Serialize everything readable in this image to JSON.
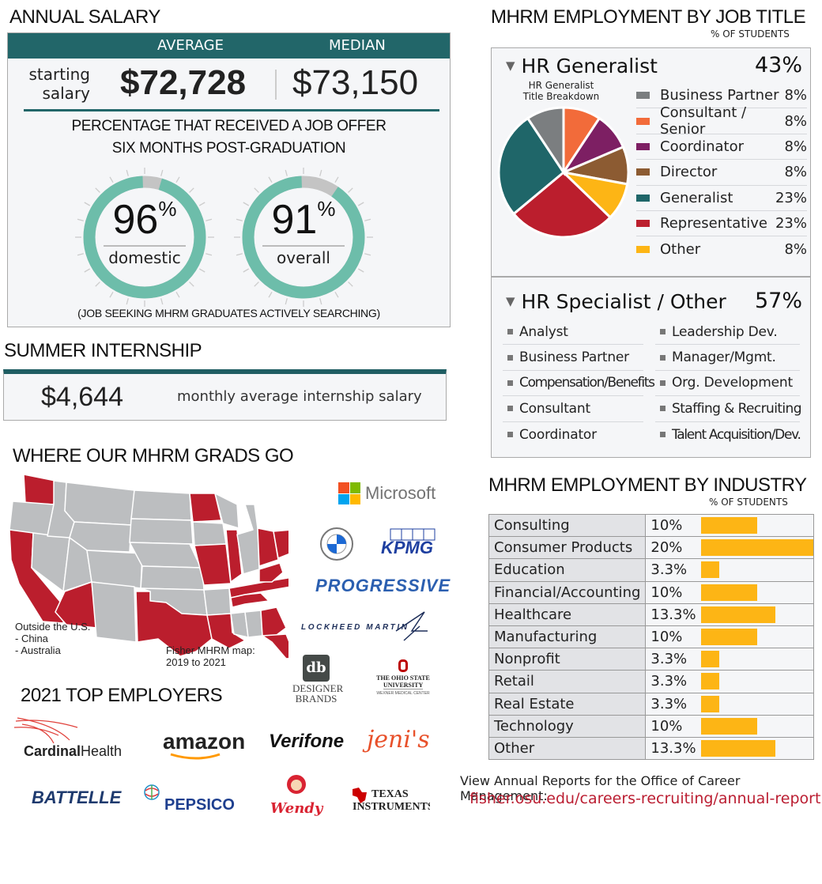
{
  "annual_salary": {
    "title": "ANNUAL SALARY",
    "header_average": "AVERAGE",
    "header_median": "MEDIAN",
    "row_label_line1": "starting",
    "row_label_line2": "salary",
    "average": "$72,728",
    "median": "$73,150",
    "offer_title_line1": "PERCENTAGE THAT RECEIVED A JOB OFFER",
    "offer_title_line2": "SIX MONTHS POST-GRADUATION",
    "gauges": [
      {
        "value": "96",
        "unit": "%",
        "label": "domestic",
        "percent": 96
      },
      {
        "value": "91",
        "unit": "%",
        "label": "overall",
        "percent": 91
      }
    ],
    "note": "(JOB SEEKING MHRM GRADUATES ACTIVELY SEARCHING)",
    "colors": {
      "header": "#226669",
      "gauge_fill": "#6dbdaa",
      "gauge_rest": "#c4c4c4"
    }
  },
  "internship": {
    "title": "SUMMER INTERNSHIP",
    "value": "$4,644",
    "label": "monthly average internship salary"
  },
  "map": {
    "title": "WHERE OUR MHRM GRADS GO",
    "outside_line1": "Outside the U.S.",
    "outside_line2": "- China",
    "outside_line3": "- Australia",
    "caption_line1": "Fisher MHRM map:",
    "caption_line2": "2019 to 2021",
    "highlight_color": "#bb1e2d",
    "base_color": "#bcbec0",
    "logos": [
      "Microsoft",
      "BMW",
      "KPMG",
      "PROGRESSIVE",
      "LOCKHEED MARTIN",
      "DESIGNER BRANDS",
      "THE OHIO STATE UNIVERSITY WEXNER MEDICAL CENTER"
    ],
    "logo_text": {
      "microsoft": "Microsoft",
      "bmw": "BMW",
      "kpmg": "KPMG",
      "progressive": "PROGRESSIVE",
      "lockheed": "LOCKHEED MARTIN",
      "designer_mark": "db",
      "designer_line1": "DESIGNER",
      "designer_line2": "BRANDS",
      "osu_line1": "THE OHIO STATE",
      "osu_line2": "UNIVERSITY",
      "osu_line3": "WEXNER MEDICAL CENTER"
    }
  },
  "top_employers": {
    "title": "2021 TOP EMPLOYERS",
    "logos": [
      "CardinalHealth",
      "amazon",
      "Verifone",
      "jeni's",
      "BATTELLE",
      "PEPSICO",
      "Wendy's",
      "Texas Instruments"
    ],
    "logo_text": {
      "cardinal_bold": "Cardinal",
      "cardinal_light": "Health",
      "amazon": "amazon",
      "verifone": "Verifone",
      "jenis": "jeni's",
      "battelle": "BATTELLE",
      "pepsico": "PEPSICO",
      "wendys": "Wendy's",
      "ti_line1": "TEXAS",
      "ti_line2": "INSTRUMENTS"
    }
  },
  "job_title": {
    "title": "MHRM EMPLOYMENT BY JOB TITLE",
    "subtitle": "% OF STUDENTS",
    "generalist": {
      "label": "HR Generalist",
      "percent": "43%",
      "pie_title_line1": "HR Generalist",
      "pie_title_line2": "Title Breakdown",
      "legend": [
        {
          "label": "Business Partner",
          "value": "8%",
          "color": "#7b7e80"
        },
        {
          "label": "Consultant / Senior",
          "value": "8%",
          "color": "#f26b3a"
        },
        {
          "label": "Coordinator",
          "value": "8%",
          "color": "#7d1f63"
        },
        {
          "label": "Director",
          "value": "8%",
          "color": "#8c5b32"
        },
        {
          "label": "Generalist",
          "value": "23%",
          "color": "#1f6669"
        },
        {
          "label": "Representative",
          "value": "23%",
          "color": "#bb1e2d"
        },
        {
          "label": "Other",
          "value": "8%",
          "color": "#fdb515"
        }
      ]
    },
    "specialist": {
      "label": "HR Specialist / Other",
      "percent": "57%",
      "col1": [
        "Analyst",
        "Business Partner",
        "Compensation/Benefits",
        "Consultant",
        "Coordinator"
      ],
      "col2": [
        "Leadership Dev.",
        "Manager/Mgmt.",
        "Org. Development",
        "Staffing & Recruiting",
        "Talent Acquisition/Dev."
      ]
    }
  },
  "industry": {
    "title": "MHRM EMPLOYMENT BY INDUSTRY",
    "subtitle": "% OF STUDENTS",
    "rows": [
      {
        "name": "Consulting",
        "value": "10%",
        "pct": 10
      },
      {
        "name": "Consumer Products",
        "value": "20%",
        "pct": 20
      },
      {
        "name": "Education",
        "value": "3.3%",
        "pct": 3.3
      },
      {
        "name": "Financial/Accounting",
        "value": "10%",
        "pct": 10
      },
      {
        "name": "Healthcare",
        "value": "13.3%",
        "pct": 13.3
      },
      {
        "name": "Manufacturing",
        "value": "10%",
        "pct": 10
      },
      {
        "name": "Nonprofit",
        "value": "3.3%",
        "pct": 3.3
      },
      {
        "name": "Retail",
        "value": "3.3%",
        "pct": 3.3
      },
      {
        "name": "Real Estate",
        "value": "3.3%",
        "pct": 3.3
      },
      {
        "name": "Technology",
        "value": "10%",
        "pct": 10
      },
      {
        "name": "Other",
        "value": "13.3%",
        "pct": 13.3
      }
    ],
    "bar_color": "#fdb515"
  },
  "footer": {
    "reports_label": "View Annual Reports for the Office of Career Management:",
    "reports_link": "fisher.osu.edu/careers-recruiting/annual-report"
  },
  "chart_data": [
    {
      "type": "pie",
      "title": "HR Generalist Title Breakdown",
      "categories": [
        "Business Partner",
        "Consultant / Senior",
        "Coordinator",
        "Director",
        "Generalist",
        "Representative",
        "Other"
      ],
      "values": [
        8,
        8,
        8,
        8,
        23,
        23,
        8
      ],
      "colors": [
        "#7b7e80",
        "#f26b3a",
        "#7d1f63",
        "#8c5b32",
        "#1f6669",
        "#bb1e2d",
        "#fdb515"
      ],
      "legend_position": "right"
    },
    {
      "type": "bar",
      "orientation": "horizontal",
      "title": "MHRM EMPLOYMENT BY INDUSTRY",
      "subtitle": "% OF STUDENTS",
      "categories": [
        "Consulting",
        "Consumer Products",
        "Education",
        "Financial/Accounting",
        "Healthcare",
        "Manufacturing",
        "Nonprofit",
        "Retail",
        "Real Estate",
        "Technology",
        "Other"
      ],
      "values": [
        10,
        20,
        3.3,
        10,
        13.3,
        10,
        3.3,
        3.3,
        3.3,
        10,
        13.3
      ],
      "xlabel": "",
      "ylabel": "",
      "xlim": [
        0,
        20
      ],
      "grid": false
    },
    {
      "type": "pie",
      "title": "Percentage that received a job offer six months post-graduation",
      "categories": [
        "domestic",
        "overall"
      ],
      "values": [
        96,
        91
      ],
      "style": "donut-gauge"
    },
    {
      "type": "table",
      "title": "MHRM EMPLOYMENT BY JOB TITLE",
      "categories": [
        "HR Generalist",
        "HR Specialist / Other"
      ],
      "values": [
        43,
        57
      ]
    }
  ]
}
